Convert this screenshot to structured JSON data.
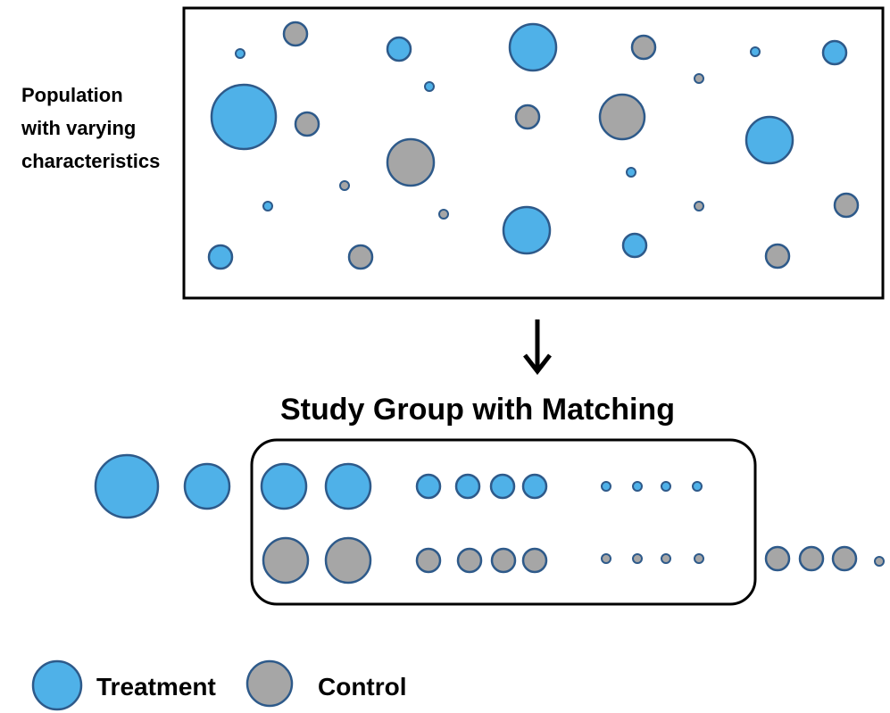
{
  "population": {
    "label_lines": [
      "Population",
      "with varying",
      "characteristics"
    ]
  },
  "study_group": {
    "title": "Study Group with Matching"
  },
  "legend": {
    "treatment": "Treatment",
    "control": "Control"
  },
  "colors": {
    "treatment_fill": "#4FB1E8",
    "control_fill": "#A6A6A6",
    "circle_stroke": "#2E5A8A",
    "frame_stroke": "#000000"
  }
}
